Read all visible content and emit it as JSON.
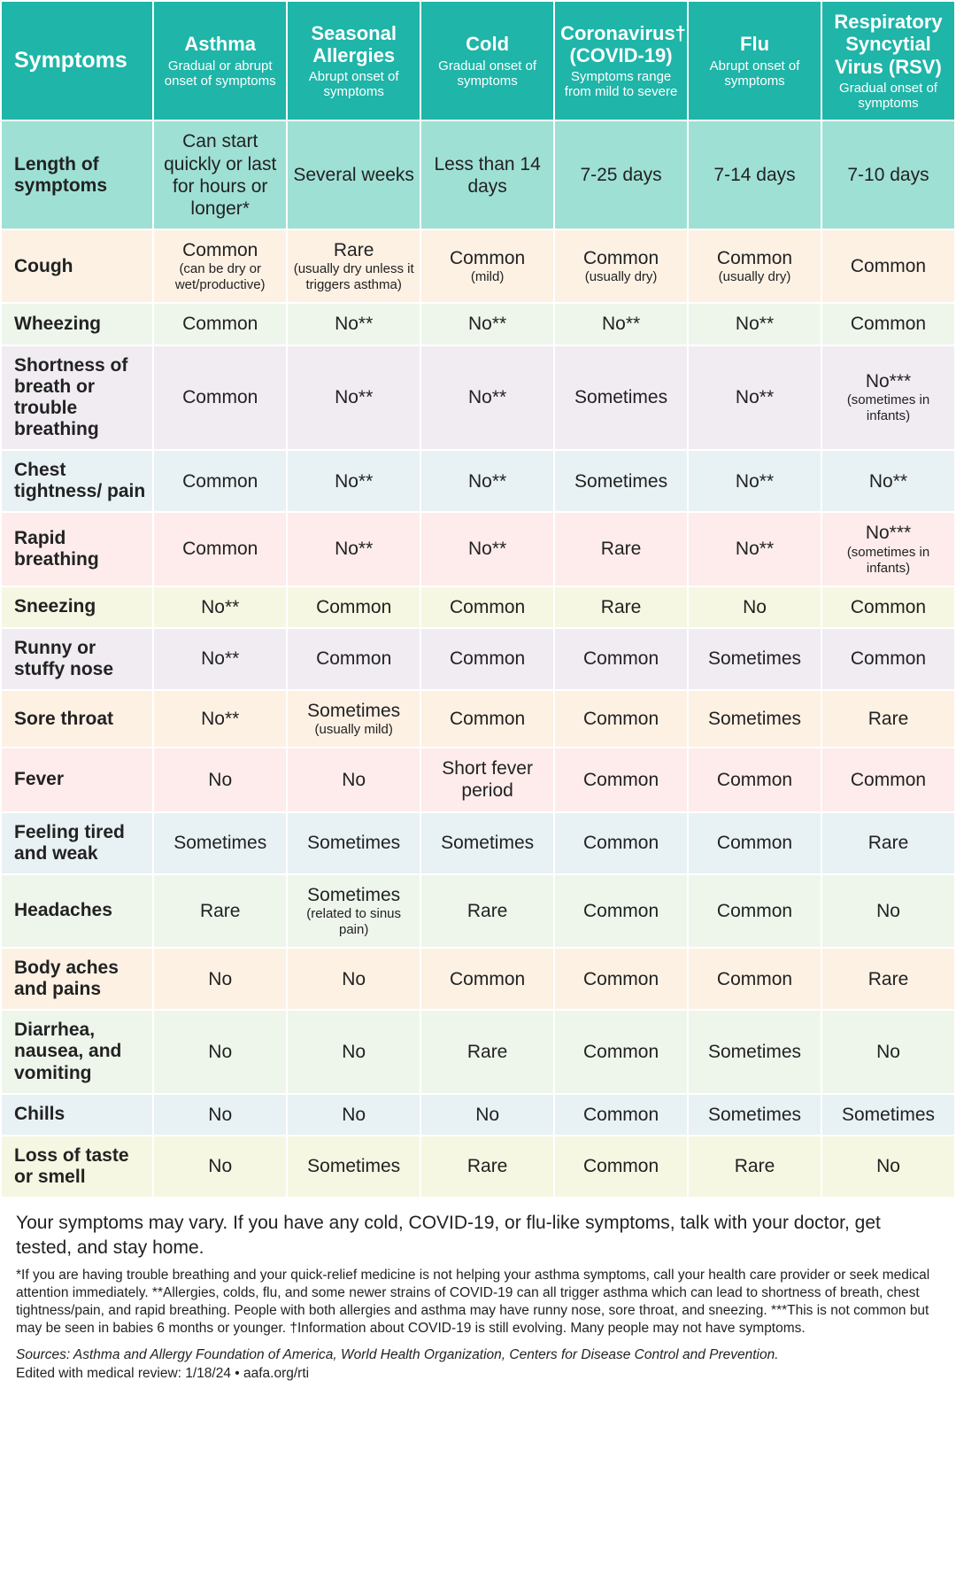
{
  "row_colors": [
    "#9fe0d5",
    "#fdf1e4",
    "#eef6ec",
    "#f0ecf2",
    "#e8f1f4",
    "#fdeceb",
    "#f6f7e2",
    "#f0ecf2",
    "#fdf1e4",
    "#fdeceb",
    "#e8f1f4",
    "#eef6ec",
    "#fdf1e4",
    "#eef6ec",
    "#e8f1f4",
    "#f6f7e2"
  ],
  "header_bg": "#1fb5a8",
  "header": {
    "symptoms": "Symptoms",
    "cols": [
      {
        "title": "Asthma",
        "sub": "Gradual or abrupt onset of symptoms"
      },
      {
        "title": "Seasonal Allergies",
        "sub": "Abrupt onset of symptoms"
      },
      {
        "title": "Cold",
        "sub": "Gradual onset of symptoms"
      },
      {
        "title": "Coronavirus† (COVID-19)",
        "sub": "Symptoms range from mild to severe"
      },
      {
        "title": "Flu",
        "sub": "Abrupt onset of symptoms"
      },
      {
        "title": "Respiratory Syncytial Virus (RSV)",
        "sub": "Gradual onset of symptoms"
      }
    ]
  },
  "rows": [
    {
      "label": "Length of symptoms",
      "cells": [
        {
          "t": "Can start quickly or last for hours or longer*"
        },
        {
          "t": "Several weeks"
        },
        {
          "t": "Less than 14 days"
        },
        {
          "t": "7-25 days"
        },
        {
          "t": "7-14 days"
        },
        {
          "t": "7-10 days"
        }
      ]
    },
    {
      "label": "Cough",
      "cells": [
        {
          "t": "Common",
          "s": "(can be dry or wet/productive)"
        },
        {
          "t": "Rare",
          "s": "(usually dry unless it triggers asthma)"
        },
        {
          "t": "Common",
          "s": "(mild)"
        },
        {
          "t": "Common",
          "s": "(usually dry)"
        },
        {
          "t": "Common",
          "s": "(usually dry)"
        },
        {
          "t": "Common"
        }
      ]
    },
    {
      "label": "Wheezing",
      "cells": [
        {
          "t": "Common"
        },
        {
          "t": "No**"
        },
        {
          "t": "No**"
        },
        {
          "t": "No**"
        },
        {
          "t": "No**"
        },
        {
          "t": "Common"
        }
      ]
    },
    {
      "label": "Shortness of breath or trouble breathing",
      "cells": [
        {
          "t": "Common"
        },
        {
          "t": "No**"
        },
        {
          "t": "No**"
        },
        {
          "t": "Sometimes"
        },
        {
          "t": "No**"
        },
        {
          "t": "No***",
          "s": "(sometimes in infants)"
        }
      ]
    },
    {
      "label": "Chest tightness/ pain",
      "cells": [
        {
          "t": "Common"
        },
        {
          "t": "No**"
        },
        {
          "t": "No**"
        },
        {
          "t": "Sometimes"
        },
        {
          "t": "No**"
        },
        {
          "t": "No**"
        }
      ]
    },
    {
      "label": "Rapid breathing",
      "cells": [
        {
          "t": "Common"
        },
        {
          "t": "No**"
        },
        {
          "t": "No**"
        },
        {
          "t": "Rare"
        },
        {
          "t": "No**"
        },
        {
          "t": "No***",
          "s": "(sometimes in infants)"
        }
      ]
    },
    {
      "label": "Sneezing",
      "cells": [
        {
          "t": "No**"
        },
        {
          "t": "Common"
        },
        {
          "t": "Common"
        },
        {
          "t": "Rare"
        },
        {
          "t": "No"
        },
        {
          "t": "Common"
        }
      ]
    },
    {
      "label": "Runny or stuffy nose",
      "cells": [
        {
          "t": "No**"
        },
        {
          "t": "Common"
        },
        {
          "t": "Common"
        },
        {
          "t": "Common"
        },
        {
          "t": "Sometimes"
        },
        {
          "t": "Common"
        }
      ]
    },
    {
      "label": "Sore throat",
      "cells": [
        {
          "t": "No**"
        },
        {
          "t": "Sometimes",
          "s": "(usually mild)"
        },
        {
          "t": "Common"
        },
        {
          "t": "Common"
        },
        {
          "t": "Sometimes"
        },
        {
          "t": "Rare"
        }
      ]
    },
    {
      "label": "Fever",
      "cells": [
        {
          "t": "No"
        },
        {
          "t": "No"
        },
        {
          "t": "Short fever period"
        },
        {
          "t": "Common"
        },
        {
          "t": "Common"
        },
        {
          "t": "Common"
        }
      ]
    },
    {
      "label": "Feeling tired and weak",
      "cells": [
        {
          "t": "Sometimes"
        },
        {
          "t": "Sometimes"
        },
        {
          "t": "Sometimes"
        },
        {
          "t": "Common"
        },
        {
          "t": "Common"
        },
        {
          "t": "Rare"
        }
      ]
    },
    {
      "label": "Headaches",
      "cells": [
        {
          "t": "Rare"
        },
        {
          "t": "Sometimes",
          "s": "(related to sinus pain)"
        },
        {
          "t": "Rare"
        },
        {
          "t": "Common"
        },
        {
          "t": "Common"
        },
        {
          "t": "No"
        }
      ]
    },
    {
      "label": "Body aches and pains",
      "cells": [
        {
          "t": "No"
        },
        {
          "t": "No"
        },
        {
          "t": "Common"
        },
        {
          "t": "Common"
        },
        {
          "t": "Common"
        },
        {
          "t": "Rare"
        }
      ]
    },
    {
      "label": "Diarrhea, nausea, and vomiting",
      "cells": [
        {
          "t": "No"
        },
        {
          "t": "No"
        },
        {
          "t": "Rare"
        },
        {
          "t": "Common"
        },
        {
          "t": "Sometimes"
        },
        {
          "t": "No"
        }
      ]
    },
    {
      "label": "Chills",
      "cells": [
        {
          "t": "No"
        },
        {
          "t": "No"
        },
        {
          "t": "No"
        },
        {
          "t": "Common"
        },
        {
          "t": "Sometimes"
        },
        {
          "t": "Sometimes"
        }
      ]
    },
    {
      "label": "Loss of taste or smell",
      "cells": [
        {
          "t": "No"
        },
        {
          "t": "Sometimes"
        },
        {
          "t": "Rare"
        },
        {
          "t": "Common"
        },
        {
          "t": "Rare"
        },
        {
          "t": "No"
        }
      ]
    }
  ],
  "footer": {
    "lead": "Your symptoms may vary. If you have any cold, COVID-19, or flu-like symptoms, talk with your doctor, get tested, and stay home.",
    "notes": "*If you are having trouble breathing and your quick-relief medicine is not helping your asthma symptoms, call your health care provider or seek medical attention immediately. **Allergies, colds, flu, and some newer strains of COVID-19 can all trigger asthma which can lead to shortness of breath, chest tightness/pain, and rapid breathing. People with both allergies and asthma may have runny nose, sore throat, and sneezing. ***This is not common but may be seen in babies 6 months or younger. †Information about COVID-19 is still evolving. Many people may not have symptoms.",
    "sources": "Sources: Asthma and Allergy Foundation of America, World Health Organization, Centers for Disease Control and Prevention.",
    "edited": "Edited with medical review: 1/18/24 • aafa.org/rti"
  }
}
